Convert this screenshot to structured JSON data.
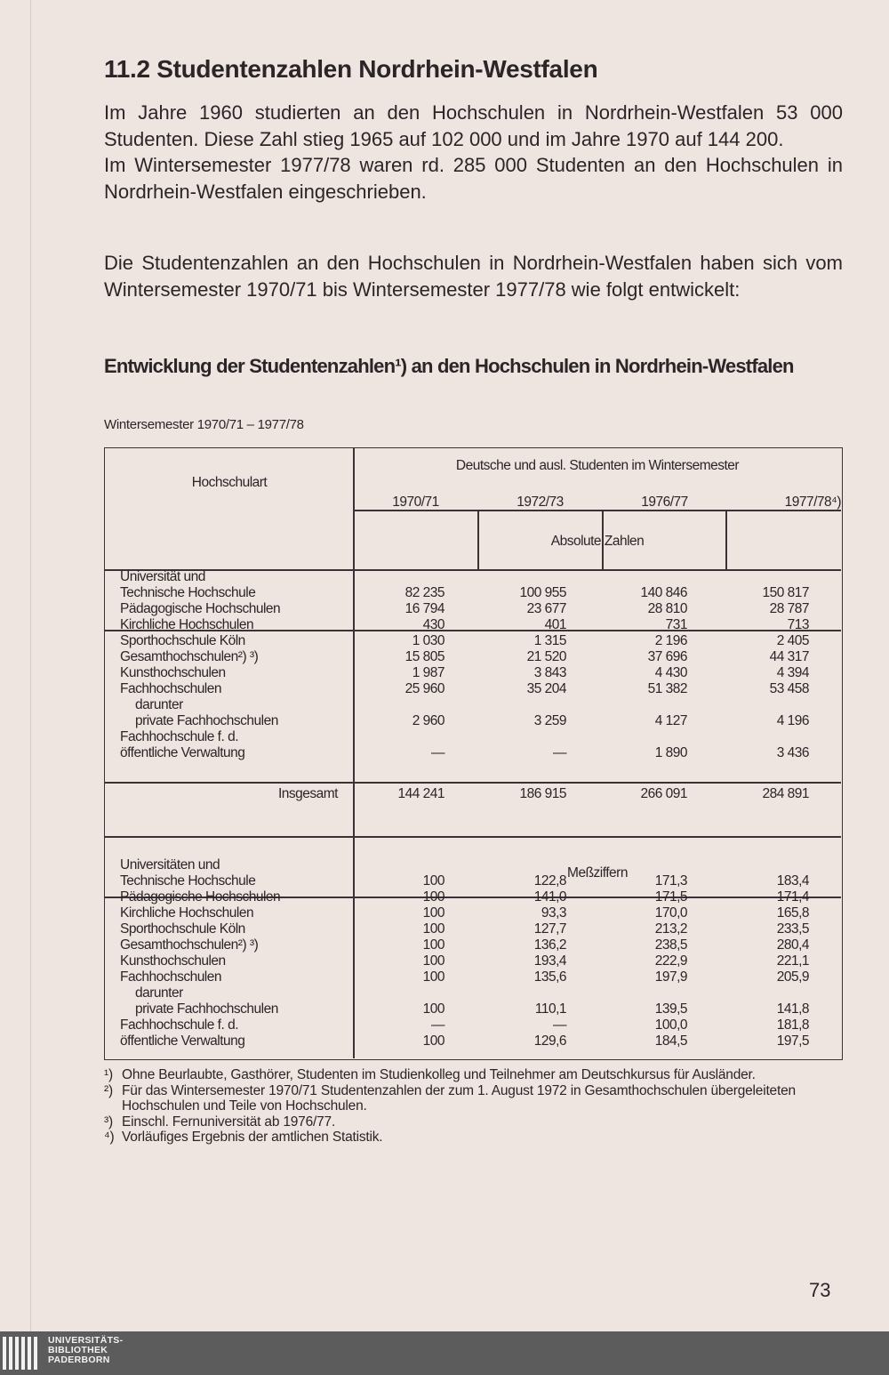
{
  "heading": "11.2 Studentenzahlen Nordrhein-Westfalen",
  "paragraph1": "Im Jahre 1960 studierten an den Hochschulen in Nordrhein-Westfalen 53 000 Studenten. Diese Zahl stieg 1965 auf 102 000 und im Jahre 1970 auf 144 200.",
  "paragraph1b": "Im Wintersemester 1977/78 waren rd. 285 000 Studenten an den Hochschulen in Nordrhein-Westfalen eingeschrieben.",
  "paragraph2": "Die Studentenzahlen an den Hochschulen in Nordrhein-Westfalen haben sich vom Wintersemester 1970/71 bis Wintersemester 1977/78 wie folgt entwickelt:",
  "table_title": "Entwicklung der Studentenzahlen¹) an den Hochschulen in Nordrhein-Westfalen",
  "table_subtitle": "Wintersemester 1970/71 – 1977/78",
  "table": {
    "col_header": "Hochschulart",
    "group_header": "Deutsche und ausl. Studenten im Wintersemester",
    "years": [
      "1970/71",
      "1972/73",
      "1976/77",
      "1977/78⁴)"
    ],
    "section_absolute": "Absolute Zahlen",
    "absolute_rows": [
      {
        "label": "Universität und",
        "values": [
          "",
          "",
          "",
          ""
        ]
      },
      {
        "label": "Technische Hochschule",
        "values": [
          "82 235",
          "100 955",
          "140 846",
          "150 817"
        ]
      },
      {
        "label": "Pädagogische Hochschulen",
        "values": [
          "16 794",
          "23 677",
          "28 810",
          "28 787"
        ]
      },
      {
        "label": "Kirchliche Hochschulen",
        "values": [
          "430",
          "401",
          "731",
          "713"
        ]
      },
      {
        "label": "Sporthochschule Köln",
        "values": [
          "1 030",
          "1 315",
          "2 196",
          "2 405"
        ]
      },
      {
        "label": "Gesamthochschulen²) ³)",
        "values": [
          "15 805",
          "21 520",
          "37 696",
          "44 317"
        ]
      },
      {
        "label": "Kunsthochschulen",
        "values": [
          "1 987",
          "3 843",
          "4 430",
          "4 394"
        ]
      },
      {
        "label": "Fachhochschulen",
        "values": [
          "25 960",
          "35 204",
          "51 382",
          "53 458"
        ]
      },
      {
        "label": "darunter",
        "indent": true,
        "values": [
          "",
          "",
          "",
          ""
        ]
      },
      {
        "label": "private Fachhochschulen",
        "indent": true,
        "values": [
          "2 960",
          "3 259",
          "4 127",
          "4 196"
        ]
      },
      {
        "label": "Fachhochschule f. d.",
        "values": [
          "",
          "",
          "",
          ""
        ]
      },
      {
        "label": "öffentliche Verwaltung",
        "values": [
          "—",
          "—",
          "1 890",
          "3 436"
        ]
      }
    ],
    "total_label": "Insgesamt",
    "total_values": [
      "144 241",
      "186 915",
      "266 091",
      "284 891"
    ],
    "section_index": "Meßziffern",
    "index_rows": [
      {
        "label": "Universitäten und",
        "values": [
          "",
          "",
          "",
          ""
        ]
      },
      {
        "label": "Technische Hochschule",
        "values": [
          "100",
          "122,8",
          "171,3",
          "183,4"
        ]
      },
      {
        "label": "Pädagogische Hochschulen",
        "values": [
          "100",
          "141,0",
          "171,5",
          "171,4"
        ]
      },
      {
        "label": "Kirchliche Hochschulen",
        "values": [
          "100",
          "93,3",
          "170,0",
          "165,8"
        ]
      },
      {
        "label": "Sporthochschule Köln",
        "values": [
          "100",
          "127,7",
          "213,2",
          "233,5"
        ]
      },
      {
        "label": "Gesamthochschulen²) ³)",
        "values": [
          "100",
          "136,2",
          "238,5",
          "280,4"
        ]
      },
      {
        "label": "Kunsthochschulen",
        "values": [
          "100",
          "193,4",
          "222,9",
          "221,1"
        ]
      },
      {
        "label": "Fachhochschulen",
        "values": [
          "100",
          "135,6",
          "197,9",
          "205,9"
        ]
      },
      {
        "label": "darunter",
        "indent": true,
        "values": [
          "",
          "",
          "",
          ""
        ]
      },
      {
        "label": "private Fachhochschulen",
        "indent": true,
        "values": [
          "100",
          "110,1",
          "139,5",
          "141,8"
        ]
      },
      {
        "label": "Fachhochschule f. d.",
        "values": [
          "—",
          "—",
          "100,0",
          "181,8"
        ]
      },
      {
        "label": "öffentliche Verwaltung",
        "values": [
          "100",
          "129,6",
          "184,5",
          "197,5"
        ]
      }
    ]
  },
  "footnotes": [
    {
      "mark": "¹)",
      "text": "Ohne Beurlaubte, Gasthörer, Studenten im Studienkolleg und Teilnehmer am Deutschkursus für Ausländer."
    },
    {
      "mark": "²)",
      "text": "Für das Wintersemester 1970/71 Studentenzahlen der zum 1. August 1972 in Gesamthochschulen übergeleiteten Hochschulen und Teile von Hochschulen."
    },
    {
      "mark": "³)",
      "text": "Einschl. Fernuniversität ab 1976/77."
    },
    {
      "mark": "⁴)",
      "text": "Vorläufiges Ergebnis der amtlichen Statistik."
    }
  ],
  "page_number": "73",
  "library_logo": [
    "UNIVERSITÄTS-",
    "BIBLIOTHEK",
    "PADERBORN"
  ],
  "colors": {
    "paper": "#eee5e1",
    "ink": "#2b2527",
    "footer_bar": "#5c5c5c"
  }
}
